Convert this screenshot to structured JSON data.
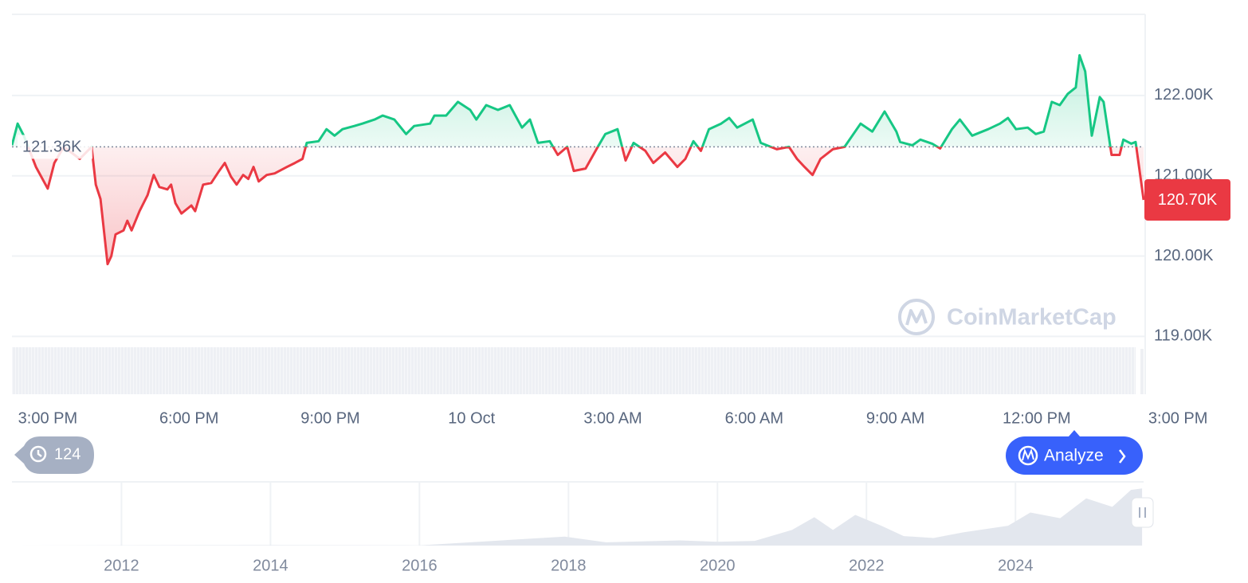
{
  "chart_data": [
    {
      "type": "line",
      "x": [
        -0.76,
        -0.64,
        -0.51,
        -0.25,
        0,
        0.14,
        0.34,
        0.68,
        0.93,
        1.02,
        1.12,
        1.27,
        1.35,
        1.44,
        1.61,
        1.69,
        1.78,
        1.95,
        2.12,
        2.25,
        2.37,
        2.54,
        2.62,
        2.71,
        2.84,
        3.05,
        3.13,
        3.3,
        3.47,
        3.64,
        3.76,
        3.89,
        4.01,
        4.15,
        4.26,
        4.37,
        4.48,
        4.65,
        4.82,
        5.08,
        5.25,
        5.41,
        5.5,
        5.75,
        5.92,
        6.09,
        6.26,
        6.51,
        6.68,
        6.94,
        7.11,
        7.36,
        7.61,
        7.78,
        8.12,
        8.21,
        8.46,
        8.71,
        8.97,
        9.1,
        9.31,
        9.56,
        9.81,
        10.07,
        10.24,
        10.41,
        10.66,
        10.83,
        11.03,
        11.17,
        11.42,
        11.68,
        11.84,
        12.1,
        12.27,
        12.44,
        12.69,
        12.86,
        13.11,
        13.37,
        13.54,
        13.71,
        13.87,
        14.04,
        14.3,
        14.47,
        14.64,
        14.97,
        15.14,
        15.48,
        15.74,
        15.91,
        16.07,
        16.24,
        16.41,
        16.67,
        16.92,
        17.26,
        17.51,
        17.77,
        18.02,
        18.1,
        18.36,
        18.53,
        18.78,
        18.95,
        19.2,
        19.37,
        19.63,
        19.97,
        20.22,
        20.39,
        20.56,
        20.81,
        20.98,
        21.15,
        21.32,
        21.49,
        21.66,
        21.83,
        21.91,
        22.03,
        22.17,
        22.34,
        22.42,
        22.59,
        22.76,
        22.84,
        23.01,
        23.1,
        23.27
      ],
      "values": [
        121380,
        121650,
        121500,
        121110,
        120840,
        121160,
        121360,
        121210,
        121360,
        120890,
        120710,
        119900,
        120000,
        120270,
        120320,
        120440,
        120320,
        120560,
        120760,
        121010,
        120860,
        120830,
        120890,
        120660,
        120530,
        120630,
        120560,
        120890,
        120910,
        121060,
        121160,
        120990,
        120890,
        121010,
        120960,
        121110,
        120930,
        121010,
        121030,
        121110,
        121160,
        121210,
        121410,
        121430,
        121580,
        121500,
        121580,
        121620,
        121650,
        121700,
        121750,
        121700,
        121520,
        121620,
        121650,
        121750,
        121750,
        121920,
        121820,
        121700,
        121880,
        121820,
        121880,
        121600,
        121700,
        121410,
        121430,
        121260,
        121360,
        121060,
        121090,
        121360,
        121520,
        121580,
        121190,
        121410,
        121310,
        121160,
        121290,
        121110,
        121210,
        121430,
        121310,
        121580,
        121650,
        121720,
        121600,
        121700,
        121410,
        121330,
        121360,
        121210,
        121110,
        121010,
        121210,
        121330,
        121360,
        121650,
        121550,
        121800,
        121550,
        121420,
        121380,
        121450,
        121400,
        121340,
        121580,
        121700,
        121500,
        121580,
        121650,
        121720,
        121580,
        121600,
        121520,
        121550,
        121920,
        121880,
        122020,
        122100,
        122500,
        122300,
        121500,
        121980,
        121920,
        121260,
        121260,
        121450,
        121400,
        121420,
        120700
      ],
      "up_color": "#16c784",
      "down_color": "#ea3943",
      "xlim": [
        -0.76,
        23.27
      ],
      "xticks": [
        {
          "value": 0,
          "label": "3:00 PM"
        },
        {
          "value": 3,
          "label": "6:00 PM"
        },
        {
          "value": 6,
          "label": "9:00 PM"
        },
        {
          "value": 9,
          "label": "10 Oct"
        },
        {
          "value": 12,
          "label": "3:00 AM"
        },
        {
          "value": 15,
          "label": "6:00 AM"
        },
        {
          "value": 18,
          "label": "9:00 AM"
        },
        {
          "value": 21,
          "label": "12:00 PM"
        },
        {
          "value": 24,
          "label": "3:00 PM"
        }
      ],
      "ylim": [
        118280,
        123010
      ],
      "yticks": [
        {
          "value": 119000,
          "label": "119.00K"
        },
        {
          "value": 120000,
          "label": "120.00K"
        },
        {
          "value": 121000,
          "label": "121.00K"
        },
        {
          "value": 122000,
          "label": "122.00K"
        }
      ],
      "grid": true,
      "reference_line": {
        "value": 121360,
        "label": "121.36K"
      },
      "current_price": {
        "value": 120700,
        "label": "120.70K"
      }
    },
    {
      "type": "area",
      "x": [
        2010.6,
        2013.9,
        2016,
        2017.95,
        2018.5,
        2019.5,
        2020,
        2020.5,
        2021,
        2021.3,
        2021.55,
        2021.85,
        2022.2,
        2022.5,
        2022.9,
        2023.3,
        2023.9,
        2024.2,
        2024.6,
        2024.95,
        2025.3,
        2025.55,
        2025.7
      ],
      "values": [
        0,
        1000,
        500,
        19000,
        7000,
        11000,
        8000,
        10000,
        33000,
        60000,
        33000,
        65000,
        42000,
        20000,
        16000,
        28000,
        42000,
        70000,
        58000,
        100000,
        82000,
        118000,
        121000
      ],
      "color": "#e3e7ee",
      "xlim": [
        2010.53,
        2025.72
      ],
      "xticks": [
        2012,
        2014,
        2016,
        2018,
        2020,
        2022,
        2024
      ],
      "ylim": [
        0,
        135000
      ],
      "grid": true
    }
  ],
  "watermark": "CoinMarketCap",
  "history_count": "124",
  "analyze_button": "Analyze"
}
